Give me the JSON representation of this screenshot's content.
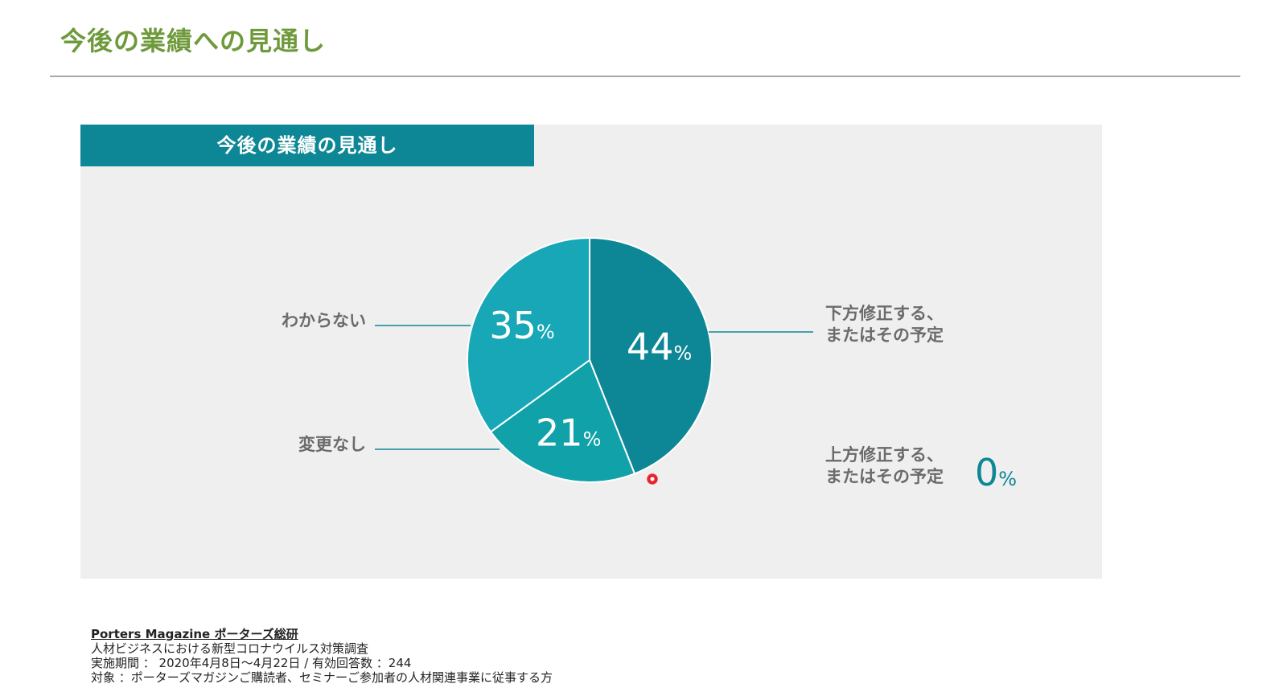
{
  "page": {
    "title": "今後の業績への見通し"
  },
  "panel": {
    "header": "今後の業績の見通し"
  },
  "chart_data": {
    "type": "pie",
    "title": "今後の業績の見通し",
    "slices": [
      {
        "label_lines": [
          "下方修正する、",
          "またはその予定"
        ],
        "value": 44,
        "pct": "44",
        "color": "#0d8795"
      },
      {
        "label_lines": [
          "変更なし"
        ],
        "value": 21,
        "pct": "21",
        "color": "#11a1a8"
      },
      {
        "label_lines": [
          "わからない"
        ],
        "value": 35,
        "pct": "35",
        "color": "#17a7b7"
      },
      {
        "label_lines": [
          "上方修正する、",
          "またはその予定"
        ],
        "value": 0,
        "pct": "0",
        "color": "#0d8795"
      }
    ],
    "unit": "%"
  },
  "footer": {
    "source": "Porters Magazine ポーターズ総研",
    "line1": "人材ビジネスにおける新型コロナウイルス対策調査",
    "line2": "実施期間 ： 2020年4月8日〜4月22日 / 有効回答数 ：244",
    "line3": "対象 ：ポーターズマガジンご購読者、セミナーご参加者の人材関連事業に従事する方"
  },
  "colors": {
    "title_green": "#6f9a3c",
    "accent_teal": "#0d8795",
    "panel_bg": "#efeff0"
  }
}
